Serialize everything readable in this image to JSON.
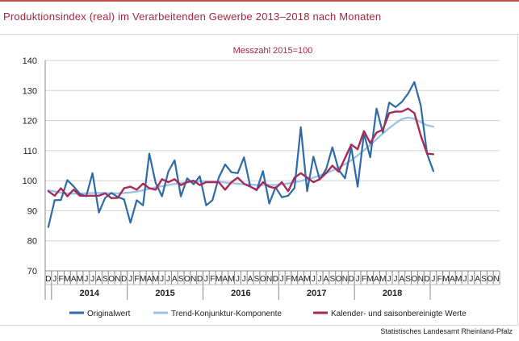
{
  "title": "Produktionsindex (real) im Verarbeitenden Gewerbe 2013–2018 nach Monaten",
  "source": "Statistisches Landesamt Rheinland-Pfalz",
  "colors": {
    "original": "#2e6aa6",
    "trend": "#9dc3e6",
    "seasonal": "#a52a5a",
    "accent": "#a5283d"
  },
  "chart_data": {
    "type": "line",
    "subtitle": "Messzahl 2015=100",
    "ylim": [
      70,
      140
    ],
    "yticks": [
      70,
      80,
      90,
      100,
      110,
      120,
      130,
      140
    ],
    "grid": true,
    "legend_position": "bottom",
    "month_labels": [
      "D",
      "J",
      "F",
      "M",
      "A",
      "M",
      "J",
      "J",
      "A",
      "S",
      "O",
      "N",
      "D",
      "J",
      "F",
      "M",
      "A",
      "M",
      "J",
      "J",
      "A",
      "S",
      "O",
      "N",
      "D",
      "J",
      "F",
      "M",
      "A",
      "M",
      "J",
      "J",
      "A",
      "S",
      "O",
      "N",
      "D",
      "J",
      "F",
      "M",
      "A",
      "M",
      "J",
      "J",
      "A",
      "S",
      "O",
      "N",
      "D",
      "J",
      "F",
      "M",
      "A",
      "M",
      "J",
      "J",
      "A",
      "S",
      "O",
      "N",
      "D",
      "J",
      "F",
      "M",
      "A",
      "M",
      "J",
      "J",
      "A",
      "S",
      "O",
      "N"
    ],
    "years": [
      "2014",
      "2015",
      "2016",
      "2017",
      "2018"
    ],
    "series": [
      {
        "name": "Originalwert",
        "values": [
          84.6,
          93.5,
          93.6,
          100.2,
          98.1,
          95.6,
          94.8,
          102.5,
          89.4,
          94.3,
          95.9,
          94.6,
          93.8,
          86.0,
          93.5,
          91.8,
          109.0,
          99.3,
          94.8,
          103.0,
          106.8,
          94.8,
          100.8,
          98.8,
          101.5,
          91.8,
          93.5,
          101.0,
          105.4,
          102.8,
          102.5,
          107.8,
          98.0,
          96.8,
          103.2,
          92.4,
          97.8,
          94.5,
          95.0,
          97.6,
          117.8,
          96.5,
          108.0,
          100.4,
          103.8,
          111.1,
          103.6,
          100.8,
          111.1,
          98.0,
          115.7,
          107.8,
          124.0,
          116.0,
          126.0,
          124.5,
          126.2,
          129.0,
          132.8,
          125.0,
          109.0,
          103.2
        ]
      },
      {
        "name": "Trend-Konjunktur-Komponente",
        "values": [
          96.8,
          96.4,
          96.0,
          95.8,
          95.7,
          95.7,
          95.8,
          95.9,
          95.9,
          95.9,
          95.8,
          95.8,
          95.9,
          96.1,
          96.4,
          96.8,
          97.3,
          97.8,
          98.2,
          98.6,
          98.9,
          99.2,
          99.5,
          99.7,
          99.8,
          99.8,
          99.7,
          99.6,
          99.4,
          99.2,
          99.0,
          98.8,
          98.7,
          98.6,
          98.6,
          98.6,
          98.6,
          98.8,
          99.1,
          99.5,
          99.9,
          100.4,
          101.0,
          101.7,
          102.5,
          103.4,
          104.4,
          105.5,
          106.8,
          108.4,
          110.1,
          111.9,
          113.8,
          115.7,
          117.5,
          119.1,
          120.5,
          121.0,
          120.6,
          119.5,
          118.4,
          118.0
        ]
      },
      {
        "name": "Kalender- und saisonbereinigte Werte",
        "values": [
          96.5,
          95.0,
          97.5,
          94.8,
          97.0,
          95.0,
          95.0,
          95.0,
          95.0,
          95.8,
          94.2,
          94.3,
          97.5,
          98.0,
          97.0,
          99.0,
          97.5,
          97.0,
          100.5,
          99.5,
          100.5,
          98.5,
          99.5,
          100.0,
          98.5,
          99.5,
          99.5,
          99.5,
          97.0,
          99.5,
          101.0,
          99.0,
          98.0,
          97.0,
          99.5,
          98.0,
          97.5,
          99.5,
          96.5,
          101.0,
          102.5,
          101.0,
          99.5,
          100.5,
          102.5,
          105.0,
          103.0,
          107.5,
          112.0,
          110.5,
          116.5,
          112.5,
          116.0,
          117.0,
          122.5,
          123.0,
          123.0,
          124.0,
          122.5,
          115.0,
          109.0,
          108.8
        ]
      }
    ]
  }
}
